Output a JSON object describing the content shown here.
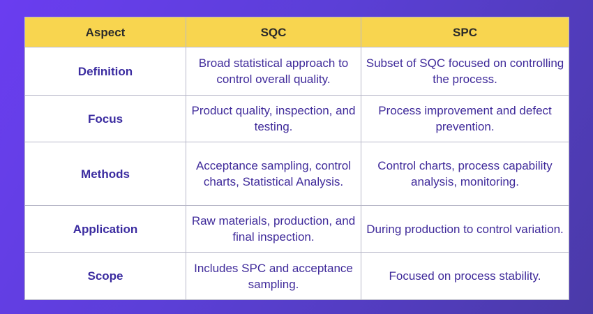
{
  "table": {
    "headers": [
      "Aspect",
      "SQC",
      "SPC"
    ],
    "rows": [
      {
        "aspect": "Definition",
        "sqc": "Broad statistical approach to control overall quality.",
        "spc": "Subset of SQC focused on controlling the process."
      },
      {
        "aspect": "Focus",
        "sqc": "Product quality, inspection, and testing.",
        "spc": "Process improvement and defect prevention."
      },
      {
        "aspect": "Methods",
        "sqc": "Acceptance sampling, control charts, Statistical Analysis.",
        "spc": "Control charts, process capability analysis, monitoring."
      },
      {
        "aspect": "Application",
        "sqc": "Raw materials, production, and final inspection.",
        "spc": "During production to control variation."
      },
      {
        "aspect": "Scope",
        "sqc": "Includes SPC and acceptance sampling.",
        "spc": "Focused on process stability."
      }
    ]
  },
  "colors": {
    "header_bg": "#f8d54f",
    "text_accent": "#3f2a9a",
    "background_gradient_start": "#6a3df0",
    "background_gradient_end": "#4a3aa8"
  }
}
